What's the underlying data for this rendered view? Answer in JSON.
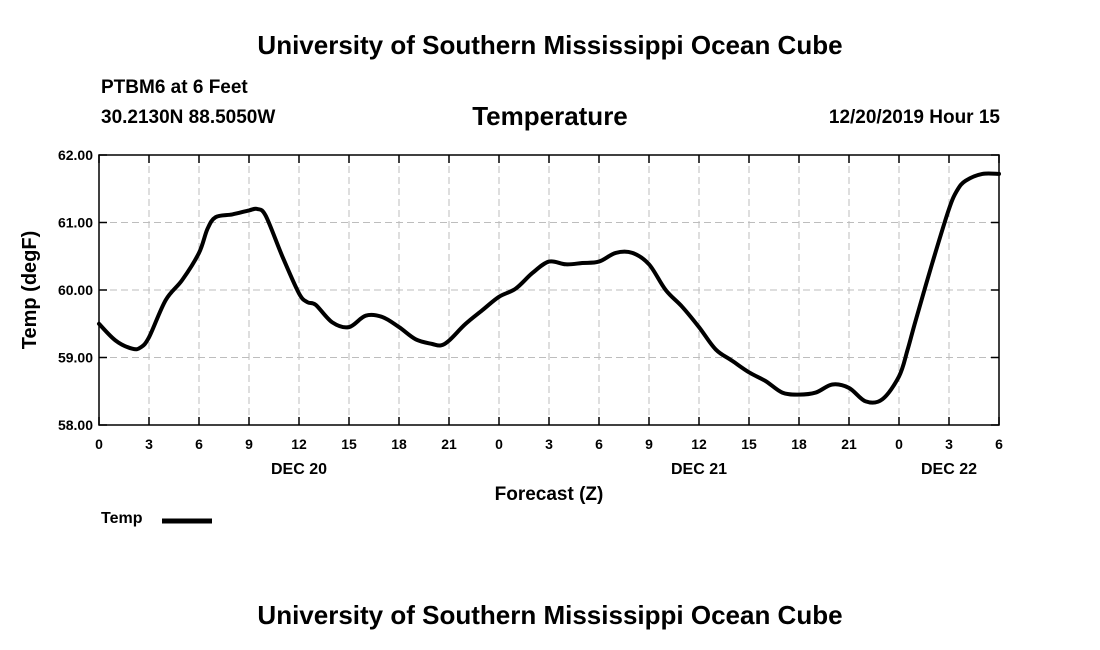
{
  "header": {
    "title_top": "University of Southern Mississippi Ocean Cube",
    "station": "PTBM6 at 6 Feet",
    "coords": "30.2130N 88.5050W",
    "variable": "Temperature",
    "issued": "12/20/2019 Hour 15"
  },
  "footer": {
    "title_bottom": "University of Southern Mississippi Ocean Cube"
  },
  "legend": {
    "label": "Temp",
    "color": "#000000"
  },
  "chart_data": {
    "type": "line",
    "title": "Temperature",
    "xlabel": "Forecast (Z)",
    "ylabel": "Temp (degF)",
    "ylim": [
      58.0,
      62.0
    ],
    "xlim": [
      0,
      54
    ],
    "grid": true,
    "yticks": [
      "58.00",
      "59.00",
      "60.00",
      "61.00",
      "62.00"
    ],
    "yticks_values": [
      58,
      59,
      60,
      61,
      62
    ],
    "xticks_values": [
      0,
      3,
      6,
      9,
      12,
      15,
      18,
      21,
      24,
      27,
      30,
      33,
      36,
      39,
      42,
      45,
      48,
      51,
      54
    ],
    "xtick_labels": [
      "0",
      "3",
      "6",
      "9",
      "12",
      "15",
      "18",
      "21",
      "0",
      "3",
      "6",
      "9",
      "12",
      "15",
      "18",
      "21",
      "0",
      "3",
      "6"
    ],
    "date_labels": [
      {
        "hour": 12,
        "label": "DEC 20"
      },
      {
        "hour": 36,
        "label": "DEC 21"
      },
      {
        "hour": 51,
        "label": "DEC 22"
      }
    ],
    "series": [
      {
        "name": "Temp",
        "color": "#000000",
        "x": [
          0,
          1,
          2,
          2.5,
          3,
          4,
          5,
          6,
          6.5,
          7,
          8,
          9,
          9.5,
          10,
          11,
          12,
          12.5,
          13,
          14,
          15,
          16,
          17,
          18,
          19,
          20,
          20.5,
          21,
          22,
          23,
          24,
          25,
          26,
          27,
          28,
          29,
          30,
          31,
          32,
          33,
          34,
          35,
          36,
          37,
          38,
          39,
          40,
          41,
          42,
          43,
          44,
          45,
          46,
          47,
          48,
          48.5,
          49,
          50,
          51,
          51.5,
          52,
          53,
          54
        ],
        "values": [
          59.5,
          59.25,
          59.13,
          59.15,
          59.3,
          59.85,
          60.15,
          60.55,
          60.9,
          61.08,
          61.12,
          61.18,
          61.2,
          61.1,
          60.5,
          59.95,
          59.82,
          59.78,
          59.52,
          59.45,
          59.62,
          59.6,
          59.45,
          59.27,
          59.2,
          59.18,
          59.25,
          59.5,
          59.7,
          59.9,
          60.02,
          60.25,
          60.42,
          60.38,
          60.4,
          60.42,
          60.55,
          60.55,
          60.38,
          60.0,
          59.75,
          59.45,
          59.12,
          58.95,
          58.78,
          58.65,
          58.48,
          58.45,
          58.48,
          58.6,
          58.55,
          58.35,
          58.38,
          58.72,
          59.1,
          59.55,
          60.4,
          61.2,
          61.48,
          61.62,
          61.72,
          61.72
        ]
      }
    ]
  }
}
